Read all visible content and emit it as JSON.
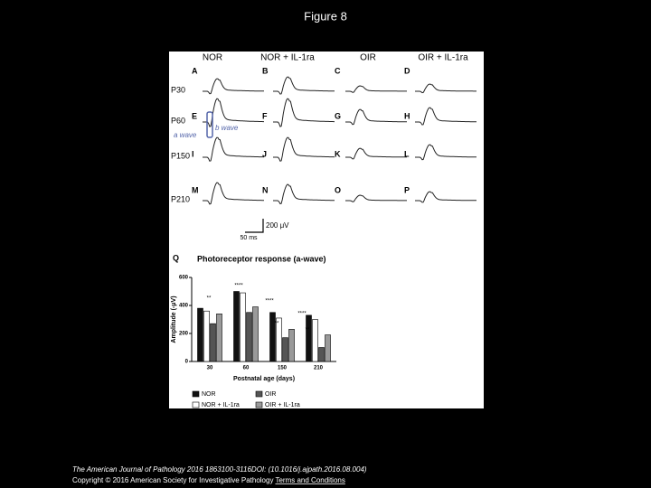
{
  "title": "Figure 8",
  "figure": {
    "column_headers": [
      "NOR",
      "NOR + IL-1ra",
      "OIR",
      "OIR + IL-1ra"
    ],
    "row_labels": [
      "P30",
      "P60",
      "P150",
      "P210"
    ],
    "panel_letters": [
      "A",
      "B",
      "C",
      "D",
      "E",
      "F",
      "G",
      "H",
      "I",
      "J",
      "K",
      "L",
      "M",
      "N",
      "O",
      "P"
    ],
    "b_wave_label": "b wave",
    "a_wave_label": "a wave",
    "scale_voltage": "200 μV",
    "scale_time": "50 ms"
  },
  "chart_data": {
    "type": "bar",
    "panel_letter": "Q",
    "title": "Photoreceptor response (a-wave)",
    "y_label": "Amplitude (-μV)",
    "x_label": "Postnatal age (days)",
    "categories": [
      "30",
      "60",
      "150",
      "210"
    ],
    "series": [
      {
        "name": "NOR",
        "color": "#111111",
        "values": [
          380,
          500,
          350,
          330
        ]
      },
      {
        "name": "NOR + IL-1ra",
        "color": "#ffffff",
        "values": [
          360,
          490,
          310,
          300
        ]
      },
      {
        "name": "OIR",
        "color": "#555555",
        "values": [
          270,
          350,
          170,
          100
        ]
      },
      {
        "name": "OIR + IL-1ra",
        "color": "#9a9a9a",
        "values": [
          340,
          390,
          230,
          190
        ]
      }
    ],
    "ylim": [
      0,
      600
    ],
    "yticks": [
      0,
      200,
      400,
      600
    ],
    "significance": [
      "**",
      "****",
      "****",
      "**",
      "****",
      "**"
    ],
    "legend": "bottom"
  },
  "footer": {
    "citation": "The American Journal of Pathology 2016 1863100-3116DOI: (10.1016/j.ajpath.2016.08.004)",
    "copyright": "Copyright © 2016 American Society for Investigative Pathology",
    "link": "Terms and Conditions"
  }
}
